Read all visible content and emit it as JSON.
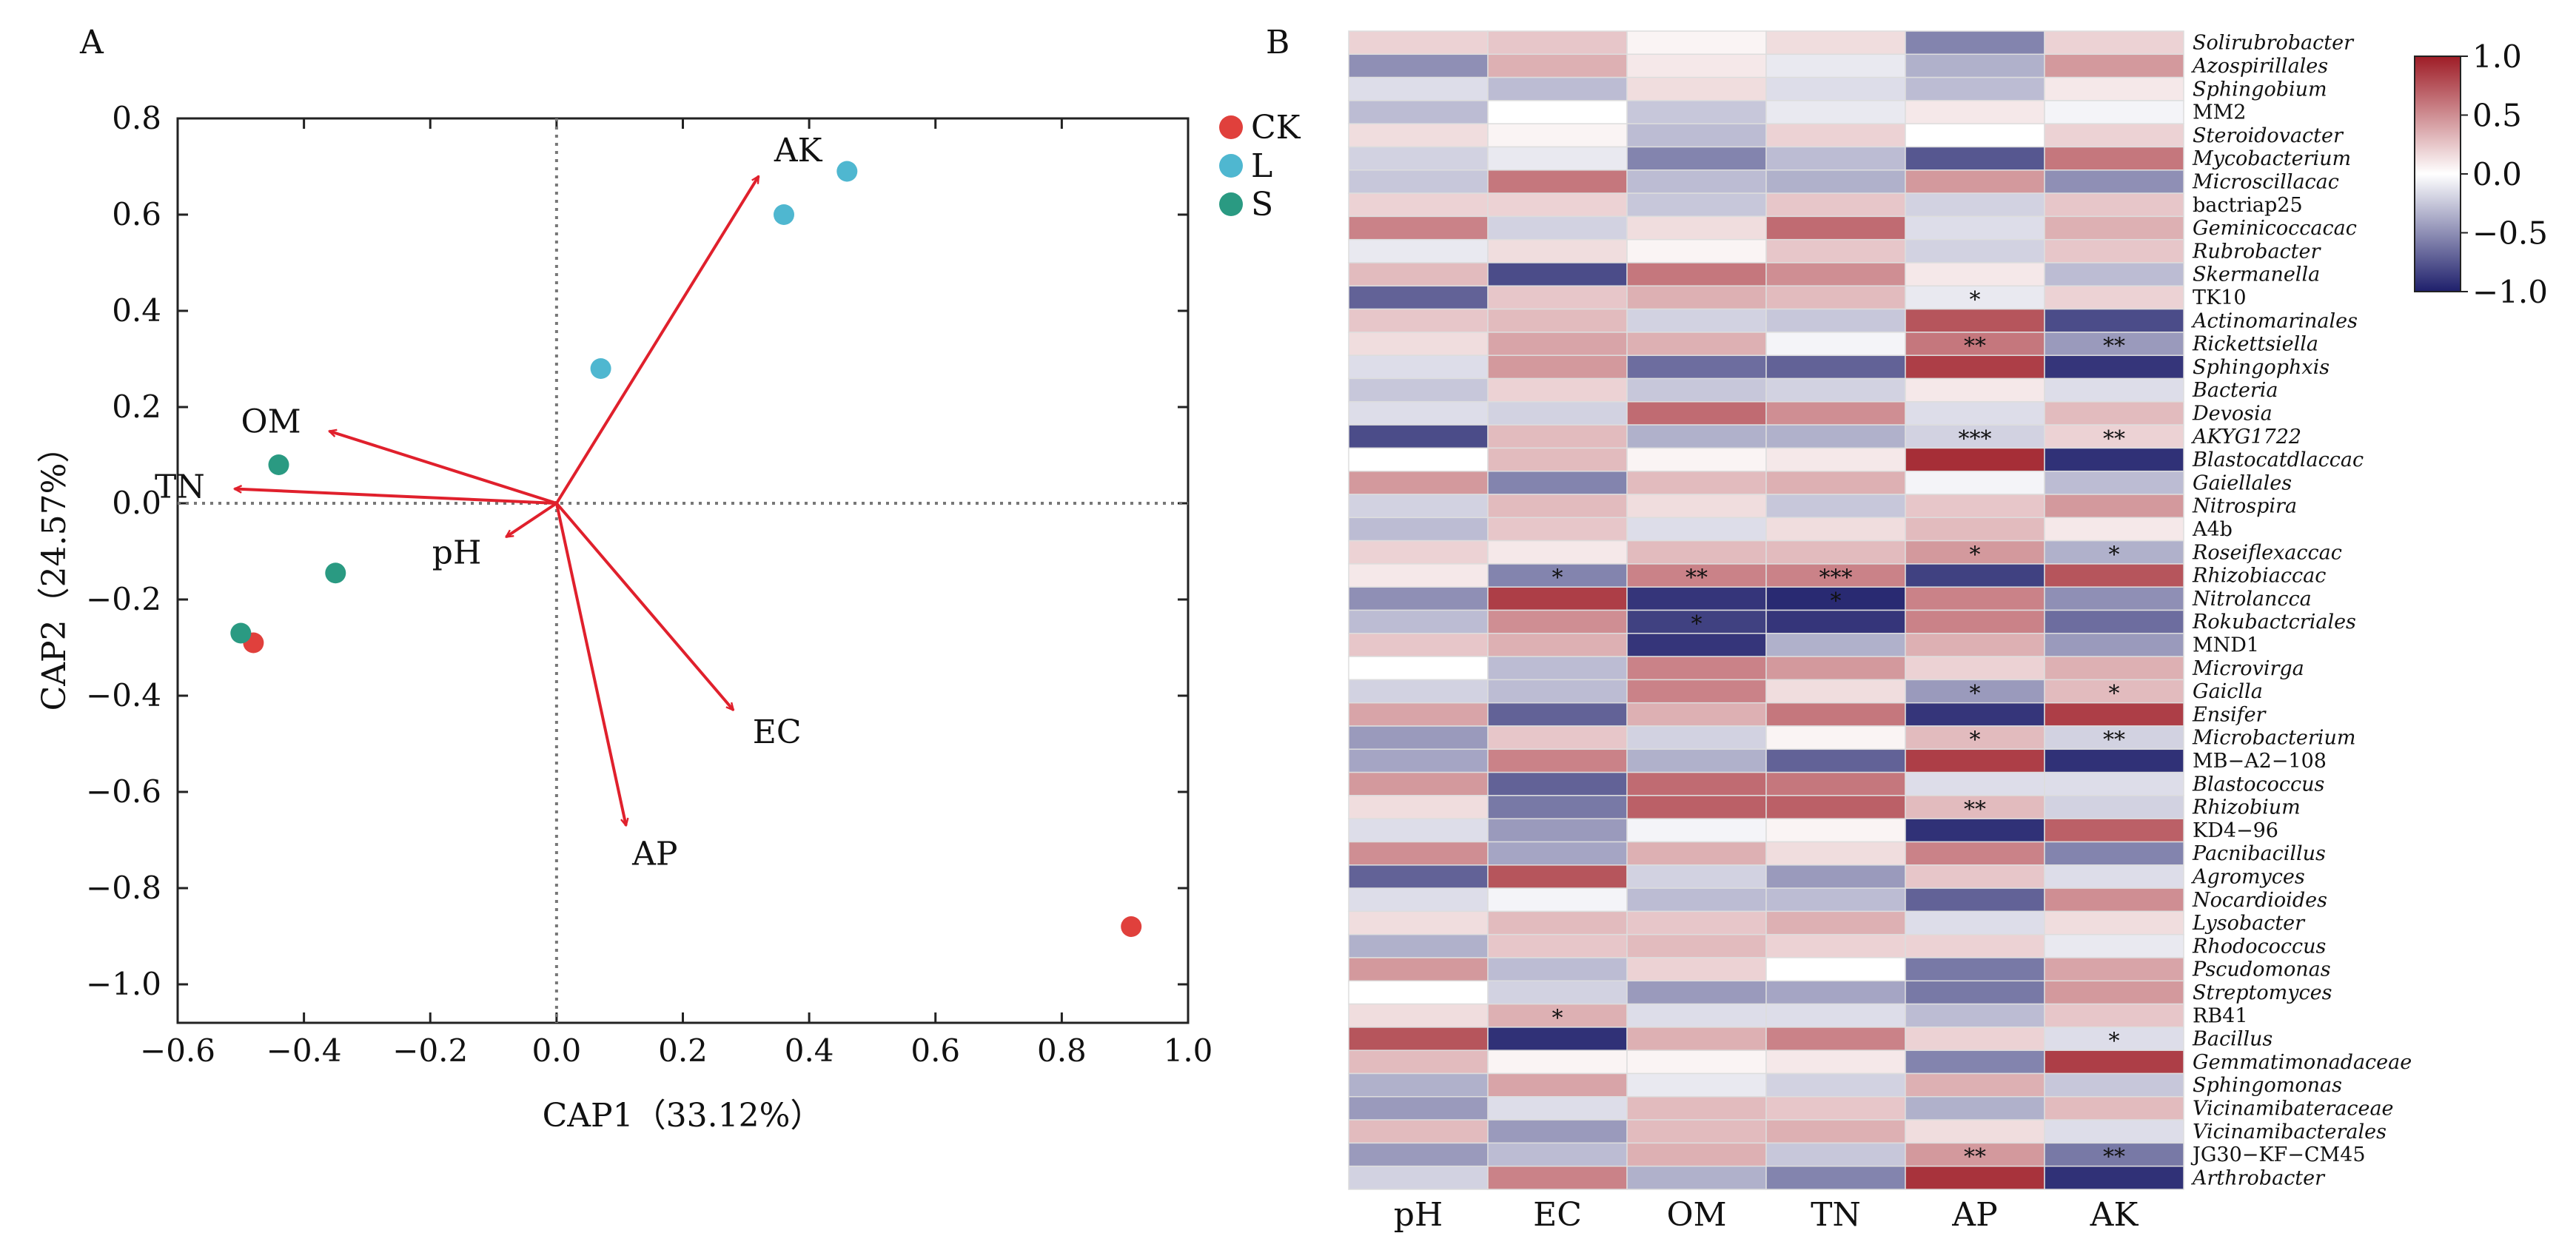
{
  "panel_labels": {
    "a": "A",
    "b": "B"
  },
  "chart_data": [
    {
      "type": "scatter",
      "panel": "A",
      "xlabel": "CAP1（33.12%）",
      "ylabel": "CAP2（24.57%）",
      "xlim": [
        -0.6,
        1.0
      ],
      "ylim": [
        -1.08,
        0.8
      ],
      "xticks": [
        -0.6,
        -0.4,
        -0.2,
        0.0,
        0.2,
        0.4,
        0.6,
        0.8,
        1.0
      ],
      "yticks": [
        -1.0,
        -0.8,
        -0.6,
        -0.4,
        -0.2,
        0.0,
        0.2,
        0.4,
        0.6,
        0.8
      ],
      "xtick_labels": [
        "−0.6",
        "−0.4",
        "−0.2",
        "0.0",
        "0.2",
        "0.4",
        "0.6",
        "0.8",
        "1.0"
      ],
      "ytick_labels": [
        "−1.0",
        "−0.8",
        "−0.6",
        "−0.4",
        "−0.2",
        "0.0",
        "0.2",
        "0.4",
        "0.6",
        "0.8"
      ],
      "legend_position": "outside-top-right",
      "grid": false,
      "reference_lines": {
        "x": 0,
        "y": 0,
        "style": "dotted"
      },
      "series": [
        {
          "name": "CK",
          "color": "#e0403c",
          "points": [
            [
              -0.48,
              -0.29
            ],
            [
              0.91,
              -0.88
            ]
          ]
        },
        {
          "name": "L",
          "color": "#4fb7d0",
          "points": [
            [
              0.46,
              0.69
            ],
            [
              0.36,
              0.6
            ],
            [
              0.07,
              0.28
            ]
          ]
        },
        {
          "name": "S",
          "color": "#2a9a82",
          "points": [
            [
              -0.44,
              0.08
            ],
            [
              -0.35,
              -0.145
            ],
            [
              -0.5,
              -0.27
            ]
          ]
        }
      ],
      "arrows": {
        "color": "#e0202c",
        "items": [
          {
            "label": "AK",
            "x": 0.32,
            "y": 0.68
          },
          {
            "label": "OM",
            "x": -0.36,
            "y": 0.15
          },
          {
            "label": "TN",
            "x": -0.51,
            "y": 0.03
          },
          {
            "label": "pH",
            "x": -0.08,
            "y": -0.07
          },
          {
            "label": "EC",
            "x": 0.28,
            "y": -0.43
          },
          {
            "label": "AP",
            "x": 0.11,
            "y": -0.67
          }
        ]
      }
    },
    {
      "type": "heatmap",
      "panel": "B",
      "columns": [
        "pH",
        "EC",
        "OM",
        "TN",
        "AP",
        "AK"
      ],
      "rows": [
        {
          "name": "Solirubrobacter",
          "italic": true
        },
        {
          "name": "Azospirillales",
          "italic": true
        },
        {
          "name": "Sphingobium",
          "italic": true
        },
        {
          "name": "MM2",
          "italic": false
        },
        {
          "name": "Steroidovacter",
          "italic": true
        },
        {
          "name": "Mycobacterium",
          "italic": true
        },
        {
          "name": "Microscillacac",
          "italic": true
        },
        {
          "name": "bactriap25",
          "italic": false
        },
        {
          "name": "Geminicoccacac",
          "italic": true
        },
        {
          "name": "Rubrobacter",
          "italic": true
        },
        {
          "name": "Skermanella",
          "italic": true
        },
        {
          "name": "TK10",
          "italic": false
        },
        {
          "name": "Actinomarinales",
          "italic": true
        },
        {
          "name": "Rickettsiella",
          "italic": true
        },
        {
          "name": "Sphingophxis",
          "italic": true
        },
        {
          "name": "Bacteria",
          "italic": true
        },
        {
          "name": "Devosia",
          "italic": true
        },
        {
          "name": "AKYG1722",
          "italic": true
        },
        {
          "name": "Blastocatdlaccac",
          "italic": true
        },
        {
          "name": "Gaiellales",
          "italic": true
        },
        {
          "name": "Nitrospira",
          "italic": true
        },
        {
          "name": "A4b",
          "italic": false
        },
        {
          "name": "Roseiflexaccac",
          "italic": true
        },
        {
          "name": "Rhizobiaccac",
          "italic": true
        },
        {
          "name": "Nitrolancca",
          "italic": true
        },
        {
          "name": "Rokubactcriales",
          "italic": true
        },
        {
          "name": "MND1",
          "italic": false
        },
        {
          "name": "Microvirga",
          "italic": true
        },
        {
          "name": "Gaiclla",
          "italic": true
        },
        {
          "name": "Ensifer",
          "italic": true
        },
        {
          "name": "Microbacterium",
          "italic": true
        },
        {
          "name": "MB−A2−108",
          "italic": false
        },
        {
          "name": "Blastococcus",
          "italic": true
        },
        {
          "name": "Rhizobium",
          "italic": true
        },
        {
          "name": "KD4−96",
          "italic": false
        },
        {
          "name": "Pacnibacillus",
          "italic": true
        },
        {
          "name": "Agromyces",
          "italic": true
        },
        {
          "name": "Nocardioides",
          "italic": true
        },
        {
          "name": "Lysobacter",
          "italic": true
        },
        {
          "name": "Rhodococcus",
          "italic": true
        },
        {
          "name": "Pscudomonas",
          "italic": true
        },
        {
          "name": "Streptomyces",
          "italic": true
        },
        {
          "name": "RB41",
          "italic": false
        },
        {
          "name": "Bacillus",
          "italic": true
        },
        {
          "name": "Gemmatimonadaceae",
          "italic": true
        },
        {
          "name": "Sphingomonas",
          "italic": true
        },
        {
          "name": "Vicinamibateraceae",
          "italic": true
        },
        {
          "name": "Vicinamibacterales",
          "italic": true
        },
        {
          "name": "JG30−KF−CM45",
          "italic": false
        },
        {
          "name": "Arthrobacter",
          "italic": true
        }
      ],
      "values": [
        [
          0.2,
          0.25,
          0.05,
          0.15,
          -0.55,
          0.2
        ],
        [
          -0.5,
          0.35,
          0.1,
          -0.1,
          -0.35,
          0.45
        ],
        [
          -0.15,
          -0.3,
          0.15,
          -0.15,
          -0.3,
          0.1
        ],
        [
          -0.3,
          0.0,
          -0.25,
          -0.1,
          0.1,
          -0.05
        ],
        [
          0.15,
          0.05,
          -0.3,
          0.2,
          0.0,
          0.2
        ],
        [
          -0.2,
          -0.1,
          -0.55,
          -0.3,
          -0.75,
          0.6
        ],
        [
          -0.25,
          0.6,
          -0.3,
          -0.35,
          0.45,
          -0.5
        ],
        [
          0.2,
          0.2,
          -0.25,
          0.25,
          -0.2,
          0.25
        ],
        [
          0.55,
          -0.2,
          0.15,
          0.65,
          -0.15,
          0.35
        ],
        [
          -0.1,
          0.15,
          0.05,
          0.25,
          -0.2,
          0.25
        ],
        [
          0.3,
          -0.8,
          0.6,
          0.5,
          0.1,
          -0.3
        ],
        [
          -0.7,
          0.25,
          0.35,
          0.3,
          -0.1,
          0.2
        ],
        [
          0.25,
          0.3,
          -0.2,
          -0.25,
          0.75,
          -0.8
        ],
        [
          0.15,
          0.4,
          0.35,
          -0.05,
          0.6,
          -0.45
        ],
        [
          -0.15,
          0.45,
          -0.65,
          -0.7,
          0.85,
          -0.9
        ],
        [
          -0.25,
          0.2,
          -0.25,
          -0.2,
          0.1,
          -0.15
        ],
        [
          -0.15,
          -0.2,
          0.65,
          0.5,
          -0.15,
          0.3
        ],
        [
          -0.8,
          0.3,
          -0.35,
          -0.35,
          -0.2,
          0.2
        ],
        [
          0.0,
          0.3,
          0.05,
          0.1,
          0.92,
          -0.92
        ],
        [
          0.45,
          -0.55,
          0.3,
          0.35,
          -0.05,
          -0.3
        ],
        [
          -0.2,
          0.3,
          0.15,
          -0.25,
          0.25,
          0.45
        ],
        [
          -0.3,
          0.25,
          -0.15,
          0.15,
          0.3,
          0.1
        ],
        [
          0.2,
          0.1,
          0.3,
          0.3,
          0.45,
          -0.35
        ],
        [
          0.1,
          -0.55,
          0.55,
          0.55,
          -0.85,
          0.75
        ],
        [
          -0.5,
          0.85,
          -0.9,
          -0.95,
          0.55,
          -0.5
        ],
        [
          -0.3,
          0.5,
          -0.85,
          -0.9,
          0.55,
          -0.65
        ],
        [
          0.25,
          0.35,
          -0.9,
          -0.35,
          0.35,
          -0.45
        ],
        [
          0.0,
          -0.3,
          0.55,
          0.45,
          0.2,
          0.35
        ],
        [
          -0.2,
          -0.3,
          0.55,
          0.15,
          -0.45,
          0.3
        ],
        [
          0.4,
          -0.7,
          0.35,
          0.6,
          -0.9,
          0.85
        ],
        [
          -0.45,
          0.25,
          -0.2,
          0.05,
          0.3,
          -0.2
        ],
        [
          -0.4,
          0.55,
          -0.35,
          -0.7,
          0.85,
          -0.92
        ],
        [
          0.45,
          -0.7,
          0.65,
          0.6,
          -0.15,
          -0.15
        ],
        [
          0.15,
          -0.6,
          0.7,
          0.7,
          0.3,
          -0.2
        ],
        [
          -0.15,
          -0.45,
          -0.05,
          0.05,
          -0.92,
          0.7
        ],
        [
          0.5,
          -0.4,
          0.35,
          0.15,
          0.55,
          -0.55
        ],
        [
          -0.7,
          0.75,
          -0.2,
          -0.45,
          0.25,
          -0.15
        ],
        [
          -0.15,
          -0.05,
          -0.3,
          -0.3,
          -0.7,
          0.5
        ],
        [
          0.15,
          0.3,
          0.25,
          0.35,
          -0.15,
          0.15
        ],
        [
          -0.35,
          0.25,
          0.3,
          0.2,
          0.2,
          -0.1
        ],
        [
          0.45,
          -0.3,
          0.2,
          0.0,
          -0.6,
          0.4
        ],
        [
          0.0,
          -0.2,
          -0.45,
          -0.4,
          -0.6,
          0.45
        ],
        [
          0.15,
          0.35,
          -0.15,
          -0.15,
          -0.3,
          0.25
        ],
        [
          0.75,
          -0.92,
          0.35,
          0.55,
          0.2,
          -0.15
        ],
        [
          0.3,
          0.05,
          0.05,
          0.1,
          -0.55,
          0.85
        ],
        [
          -0.35,
          0.4,
          -0.1,
          -0.2,
          0.35,
          -0.25
        ],
        [
          -0.45,
          -0.15,
          0.3,
          0.25,
          -0.35,
          0.3
        ],
        [
          0.3,
          -0.45,
          0.3,
          0.35,
          0.15,
          -0.15
        ],
        [
          -0.45,
          -0.3,
          0.35,
          -0.25,
          0.45,
          -0.6
        ],
        [
          -0.2,
          0.55,
          -0.35,
          -0.55,
          0.9,
          -0.92
        ]
      ],
      "significance": [
        {
          "row": 11,
          "col": 4,
          "mark": "*"
        },
        {
          "row": 13,
          "col": 4,
          "mark": "**"
        },
        {
          "row": 13,
          "col": 5,
          "mark": "**"
        },
        {
          "row": 17,
          "col": 4,
          "mark": "***"
        },
        {
          "row": 17,
          "col": 5,
          "mark": "**"
        },
        {
          "row": 22,
          "col": 4,
          "mark": "*"
        },
        {
          "row": 22,
          "col": 5,
          "mark": "*"
        },
        {
          "row": 23,
          "col": 1,
          "mark": "*"
        },
        {
          "row": 23,
          "col": 2,
          "mark": "**"
        },
        {
          "row": 23,
          "col": 3,
          "mark": "***"
        },
        {
          "row": 24,
          "col": 3,
          "mark": "*"
        },
        {
          "row": 25,
          "col": 2,
          "mark": "*"
        },
        {
          "row": 28,
          "col": 4,
          "mark": "*"
        },
        {
          "row": 28,
          "col": 5,
          "mark": "*"
        },
        {
          "row": 30,
          "col": 4,
          "mark": "*"
        },
        {
          "row": 30,
          "col": 5,
          "mark": "**"
        },
        {
          "row": 33,
          "col": 4,
          "mark": "**"
        },
        {
          "row": 42,
          "col": 1,
          "mark": "*"
        },
        {
          "row": 43,
          "col": 5,
          "mark": "*"
        },
        {
          "row": 48,
          "col": 4,
          "mark": "**"
        },
        {
          "row": 48,
          "col": 5,
          "mark": "**"
        }
      ],
      "colorbar": {
        "range": [
          -1.0,
          1.0
        ],
        "ticks": [
          1.0,
          0.5,
          0.0,
          -0.5,
          -1.0
        ],
        "tick_labels": [
          "1.0",
          "0.5",
          "0.0",
          "−0.5",
          "−1.0"
        ],
        "colors": {
          "negative": "#1e1f6b",
          "neutral": "#ffffff",
          "positive": "#9e1c26"
        }
      }
    }
  ]
}
